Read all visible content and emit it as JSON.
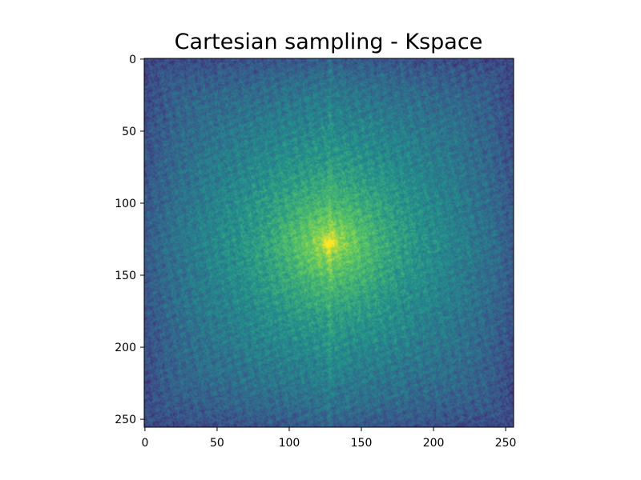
{
  "chart_data": {
    "type": "heatmap",
    "title": "Cartesian sampling - Kspace",
    "xlabel": "",
    "ylabel": "",
    "image_shape": [
      256,
      256
    ],
    "xlim": [
      -0.5,
      255.5
    ],
    "ylim": [
      255.5,
      -0.5
    ],
    "y_axis_inverted": true,
    "xticks": [
      0,
      50,
      100,
      150,
      200,
      250
    ],
    "yticks": [
      0,
      50,
      100,
      150,
      200,
      250
    ],
    "xtick_labels": [
      "0",
      "50",
      "100",
      "150",
      "200",
      "250"
    ],
    "ytick_labels": [
      "0",
      "50",
      "100",
      "150",
      "200",
      "250"
    ],
    "colormap": "viridis",
    "center_peak": {
      "x": 128,
      "y": 128
    },
    "central_vertical_line_x": 128,
    "colors": {
      "low": "#440154",
      "mid_low": "#3b528b",
      "mid": "#21918c",
      "high": "#5ec962",
      "peak": "#fde725"
    },
    "grid": false,
    "legend": "none"
  }
}
